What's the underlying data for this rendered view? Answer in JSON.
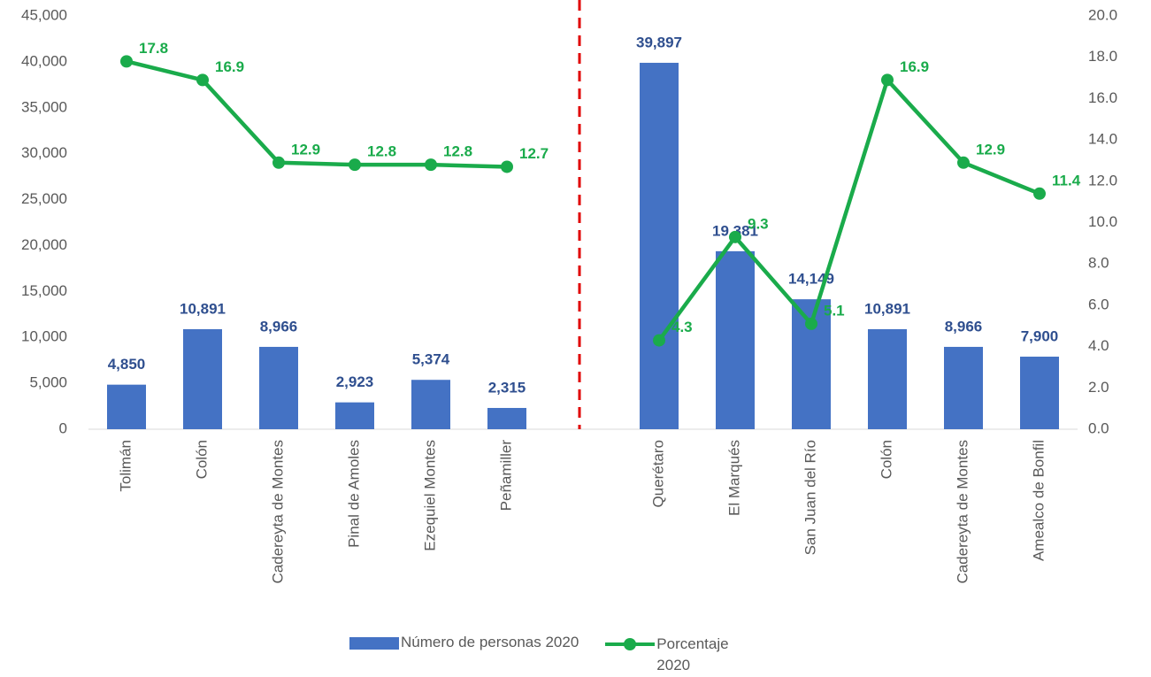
{
  "chart_data": {
    "type": "bar_line",
    "categories": [
      "Tolimán",
      "Colón",
      "Cadereyta de Montes",
      "Pinal de Amoles",
      "Ezequiel Montes",
      "Peñamiller",
      null,
      "Querétaro",
      "El Marqués",
      "San Juan del Río",
      "Colón",
      "Cadereyta de Montes",
      "Amealco de Bonfil"
    ],
    "series": [
      {
        "name": "Número de personas 2020",
        "type": "bar",
        "color": "#4472c4",
        "label_color": "#2f4f8f",
        "values": [
          4850,
          10891,
          8966,
          2923,
          5374,
          2315,
          null,
          39897,
          19381,
          14149,
          10891,
          8966,
          7900
        ],
        "value_labels": [
          "4,850",
          "10,891",
          "8,966",
          "2,923",
          "5,374",
          "2,315",
          null,
          "39,897",
          "19,381",
          "14,149",
          "10,891",
          "8,966",
          "7,900"
        ]
      },
      {
        "name": "Porcentaje 2020",
        "type": "line",
        "axis": "y2",
        "color": "#1aab4b",
        "values": [
          17.8,
          16.9,
          12.9,
          12.8,
          12.8,
          12.7,
          null,
          4.3,
          9.3,
          5.1,
          16.9,
          12.9,
          11.4
        ]
      }
    ],
    "ylim": [
      0,
      45000
    ],
    "yticks": [
      0,
      {
        "value": 5000,
        "label": "5,000"
      },
      {
        "value": 10000,
        "label": "10,000"
      },
      {
        "value": 15000,
        "label": "15,000"
      },
      {
        "value": 20000,
        "label": "20,000"
      },
      {
        "value": 25000,
        "label": "25,000"
      },
      {
        "value": 30000,
        "label": "30,000"
      },
      {
        "value": 35000,
        "label": "35,000"
      },
      {
        "value": 40000,
        "label": "40,000"
      },
      {
        "value": 45000,
        "label": "45,000"
      }
    ],
    "y2lim": [
      0,
      20
    ],
    "y2ticks": [
      {
        "value": 0,
        "label": "0.0"
      },
      {
        "value": 2,
        "label": "2.0"
      },
      {
        "value": 4,
        "label": "4.0"
      },
      {
        "value": 6,
        "label": "6.0"
      },
      {
        "value": 8,
        "label": "8.0"
      },
      {
        "value": 10,
        "label": "10.0"
      },
      {
        "value": 12,
        "label": "12.0"
      },
      {
        "value": 14,
        "label": "14.0"
      },
      {
        "value": 16,
        "label": "16.0"
      },
      {
        "value": 18,
        "label": "18.0"
      },
      {
        "value": 20,
        "label": "20.0"
      }
    ],
    "divider_color": "#e00000",
    "grid": false
  }
}
